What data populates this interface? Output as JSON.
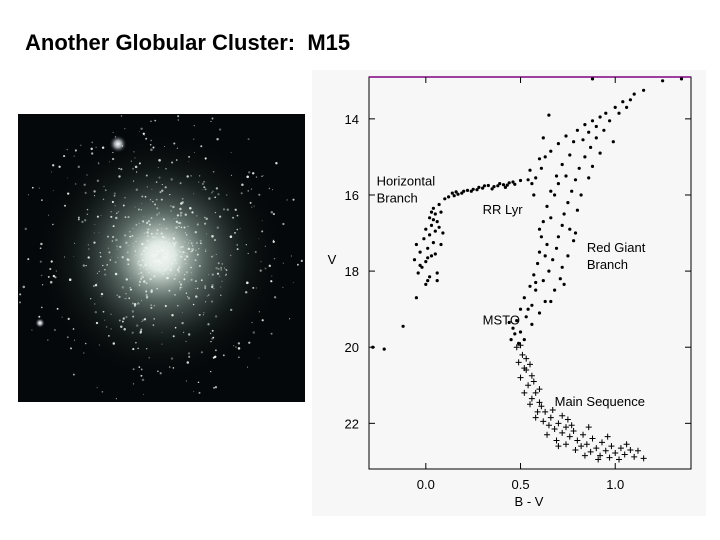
{
  "slide": {
    "title": "Another Globular Cluster:  M15"
  },
  "image": {
    "subject": "M15 globular cluster photograph",
    "colors": {
      "background": "#05080a",
      "stars": "#e6efe9",
      "halo": "#cfe0d8"
    }
  },
  "chart_data": {
    "type": "scatter",
    "title": "",
    "xlabel": "B - V",
    "ylabel": "V",
    "xlim": [
      -0.3,
      1.4
    ],
    "ylim": [
      23.2,
      12.9
    ],
    "y_inverted": true,
    "x_ticks": [
      0.0,
      0.5,
      1.0
    ],
    "x_tick_labels": [
      "0.0",
      "0.5",
      "1.0"
    ],
    "y_ticks": [
      14,
      16,
      18,
      20,
      22
    ],
    "y_tick_labels": [
      "14",
      "16",
      "18",
      "20",
      "22"
    ],
    "grid": false,
    "colors": {
      "points": "#000000",
      "frame": "#000000",
      "top_border": "#800080"
    },
    "annotations": [
      {
        "text": "Horizontal",
        "x": -0.26,
        "y": 15.75
      },
      {
        "text": "Branch",
        "x": -0.26,
        "y": 16.2
      },
      {
        "text": "RR Lyr",
        "x": 0.3,
        "y": 16.5
      },
      {
        "text": "Red Giant",
        "x": 0.85,
        "y": 17.5
      },
      {
        "text": "Branch",
        "x": 0.85,
        "y": 17.95
      },
      {
        "text": "MSTO",
        "x": 0.3,
        "y": 19.4
      },
      {
        "text": "Main Sequence",
        "x": 0.68,
        "y": 21.55
      }
    ],
    "series": [
      {
        "name": "",
        "marker": "dot",
        "points": [
          [
            -0.28,
            20.0
          ],
          [
            -0.22,
            20.05
          ],
          [
            -0.12,
            19.45
          ],
          [
            -0.05,
            18.7
          ],
          [
            0.01,
            18.25
          ],
          [
            -0.04,
            18.05
          ],
          [
            -0.02,
            17.9
          ],
          [
            0.0,
            17.75
          ],
          [
            0.03,
            17.6
          ],
          [
            -0.03,
            17.5
          ],
          [
            0.01,
            17.4
          ],
          [
            0.04,
            17.25
          ],
          [
            -0.01,
            17.15
          ],
          [
            0.02,
            17.05
          ],
          [
            0.05,
            16.95
          ],
          [
            0.0,
            16.9
          ],
          [
            0.03,
            16.8
          ],
          [
            0.06,
            16.7
          ],
          [
            0.02,
            16.6
          ],
          [
            0.05,
            16.5
          ],
          [
            0.08,
            16.45
          ],
          [
            0.04,
            16.35
          ],
          [
            0.07,
            16.25
          ],
          [
            0.1,
            16.1
          ],
          [
            0.06,
            18.05
          ],
          [
            0.02,
            18.15
          ],
          [
            -0.06,
            17.7
          ],
          [
            0.08,
            17.3
          ],
          [
            0.07,
            16.85
          ],
          [
            0.01,
            17.65
          ],
          [
            -0.03,
            17.85
          ],
          [
            0.05,
            17.55
          ],
          [
            0.09,
            17.0
          ],
          [
            0.04,
            16.65
          ],
          [
            0.0,
            18.35
          ],
          [
            0.06,
            18.25
          ],
          [
            -0.05,
            17.3
          ],
          [
            0.03,
            16.45
          ],
          [
            0.12,
            16.05
          ],
          [
            0.14,
            15.95
          ],
          [
            0.17,
            15.98
          ],
          [
            0.2,
            15.9
          ],
          [
            0.22,
            15.88
          ],
          [
            0.25,
            15.85
          ],
          [
            0.28,
            15.8
          ],
          [
            0.3,
            15.82
          ],
          [
            0.33,
            15.75
          ],
          [
            0.36,
            15.78
          ],
          [
            0.39,
            15.7
          ],
          [
            0.41,
            15.73
          ],
          [
            0.44,
            15.68
          ],
          [
            0.47,
            15.72
          ],
          [
            0.16,
            15.92
          ],
          [
            0.24,
            15.9
          ],
          [
            0.31,
            15.76
          ],
          [
            0.35,
            15.84
          ],
          [
            0.38,
            15.76
          ],
          [
            0.43,
            15.74
          ],
          [
            0.27,
            15.86
          ],
          [
            0.19,
            15.95
          ],
          [
            0.46,
            15.66
          ],
          [
            0.15,
            16.02
          ],
          [
            0.42,
            15.8
          ],
          [
            0.5,
            15.62
          ],
          [
            0.54,
            15.6
          ],
          [
            0.56,
            15.7
          ],
          [
            0.58,
            15.55
          ],
          [
            0.61,
            15.3
          ],
          [
            0.55,
            15.35
          ],
          [
            0.63,
            15.0
          ],
          [
            0.6,
            15.05
          ],
          [
            0.66,
            14.85
          ],
          [
            0.7,
            14.65
          ],
          [
            0.74,
            14.45
          ],
          [
            0.8,
            14.3
          ],
          [
            0.84,
            14.15
          ],
          [
            0.88,
            14.05
          ],
          [
            0.92,
            13.95
          ],
          [
            0.95,
            13.85
          ],
          [
            1.0,
            13.7
          ],
          [
            1.04,
            13.55
          ],
          [
            1.1,
            13.35
          ],
          [
            1.15,
            13.25
          ],
          [
            1.25,
            13.0
          ],
          [
            1.35,
            12.95
          ],
          [
            0.88,
            12.95
          ],
          [
            0.65,
            13.9
          ],
          [
            0.62,
            14.5
          ],
          [
            0.78,
            14.6
          ],
          [
            0.86,
            14.35
          ],
          [
            0.9,
            14.2
          ],
          [
            0.97,
            14.05
          ],
          [
            1.02,
            13.85
          ],
          [
            1.06,
            13.7
          ],
          [
            1.08,
            13.5
          ],
          [
            0.83,
            14.55
          ],
          [
            0.76,
            14.95
          ],
          [
            0.72,
            15.2
          ],
          [
            0.69,
            15.5
          ],
          [
            0.66,
            15.9
          ],
          [
            0.64,
            16.3
          ],
          [
            0.62,
            16.7
          ],
          [
            0.61,
            17.1
          ],
          [
            0.6,
            17.5
          ],
          [
            0.59,
            17.8
          ],
          [
            0.57,
            18.1
          ],
          [
            0.55,
            18.4
          ],
          [
            0.52,
            18.7
          ],
          [
            0.5,
            19.0
          ],
          [
            0.48,
            19.3
          ],
          [
            0.46,
            19.5
          ],
          [
            0.44,
            19.35
          ],
          [
            0.47,
            19.65
          ],
          [
            0.5,
            19.6
          ],
          [
            0.53,
            19.2
          ],
          [
            0.56,
            18.9
          ],
          [
            0.58,
            18.5
          ],
          [
            0.62,
            18.25
          ],
          [
            0.65,
            18.0
          ],
          [
            0.67,
            17.7
          ],
          [
            0.69,
            17.4
          ],
          [
            0.7,
            17.1
          ],
          [
            0.72,
            16.8
          ],
          [
            0.73,
            16.5
          ],
          [
            0.75,
            16.2
          ],
          [
            0.77,
            15.9
          ],
          [
            0.79,
            15.6
          ],
          [
            0.81,
            15.3
          ],
          [
            0.84,
            15.0
          ],
          [
            0.87,
            14.75
          ],
          [
            0.9,
            14.5
          ],
          [
            0.94,
            14.3
          ],
          [
            0.68,
            16.0
          ],
          [
            0.7,
            15.7
          ],
          [
            0.74,
            15.5
          ],
          [
            0.66,
            16.6
          ],
          [
            0.64,
            17.3
          ],
          [
            0.72,
            17.9
          ],
          [
            0.75,
            17.6
          ],
          [
            0.78,
            17.2
          ],
          [
            0.76,
            16.9
          ],
          [
            0.8,
            16.4
          ],
          [
            0.82,
            16.0
          ],
          [
            0.71,
            18.2
          ],
          [
            0.68,
            18.5
          ],
          [
            0.63,
            18.8
          ],
          [
            0.6,
            19.1
          ],
          [
            0.56,
            19.4
          ],
          [
            0.52,
            19.8
          ],
          [
            0.49,
            19.9
          ],
          [
            0.45,
            19.8
          ],
          [
            0.54,
            19.0
          ],
          [
            0.66,
            18.8
          ],
          [
            0.73,
            18.35
          ],
          [
            0.79,
            17.0
          ],
          [
            0.86,
            15.55
          ],
          [
            0.88,
            15.25
          ],
          [
            0.92,
            14.9
          ],
          [
            0.99,
            14.6
          ],
          [
            0.57,
            16.0
          ],
          [
            0.6,
            16.9
          ],
          [
            0.63,
            17.6
          ],
          [
            0.58,
            18.3
          ]
        ]
      },
      {
        "name": "",
        "marker": "plus",
        "points": [
          [
            0.48,
            20.0
          ],
          [
            0.51,
            20.2
          ],
          [
            0.49,
            20.4
          ],
          [
            0.53,
            20.6
          ],
          [
            0.5,
            20.8
          ],
          [
            0.54,
            21.0
          ],
          [
            0.52,
            21.2
          ],
          [
            0.56,
            21.35
          ],
          [
            0.55,
            21.5
          ],
          [
            0.59,
            21.7
          ],
          [
            0.58,
            21.85
          ],
          [
            0.62,
            21.95
          ],
          [
            0.65,
            22.05
          ],
          [
            0.68,
            22.15
          ],
          [
            0.72,
            22.25
          ],
          [
            0.76,
            22.35
          ],
          [
            0.8,
            22.45
          ],
          [
            0.85,
            22.55
          ],
          [
            0.9,
            22.65
          ],
          [
            0.95,
            22.72
          ],
          [
            1.0,
            22.78
          ],
          [
            1.05,
            22.82
          ],
          [
            1.1,
            22.88
          ],
          [
            1.15,
            22.92
          ],
          [
            0.53,
            20.3
          ],
          [
            0.57,
            20.9
          ],
          [
            0.6,
            21.45
          ],
          [
            0.63,
            21.7
          ],
          [
            0.66,
            21.85
          ],
          [
            0.7,
            22.0
          ],
          [
            0.74,
            22.1
          ],
          [
            0.78,
            22.2
          ],
          [
            0.83,
            22.3
          ],
          [
            0.88,
            22.4
          ],
          [
            0.93,
            22.5
          ],
          [
            0.98,
            22.6
          ],
          [
            1.03,
            22.65
          ],
          [
            1.08,
            22.7
          ],
          [
            0.52,
            20.55
          ],
          [
            0.56,
            20.75
          ],
          [
            0.6,
            21.1
          ],
          [
            0.67,
            21.65
          ],
          [
            0.72,
            21.8
          ],
          [
            0.77,
            22.05
          ],
          [
            0.82,
            22.6
          ],
          [
            0.87,
            22.75
          ],
          [
            0.92,
            22.85
          ],
          [
            0.97,
            22.9
          ],
          [
            1.02,
            22.95
          ],
          [
            0.64,
            22.3
          ],
          [
            0.69,
            22.45
          ],
          [
            0.74,
            22.55
          ],
          [
            0.79,
            22.7
          ],
          [
            0.84,
            22.85
          ],
          [
            0.5,
            19.95
          ],
          [
            0.55,
            20.45
          ],
          [
            0.58,
            21.2
          ],
          [
            0.61,
            21.55
          ],
          [
            0.75,
            21.9
          ],
          [
            0.86,
            22.1
          ],
          [
            0.96,
            22.35
          ],
          [
            1.06,
            22.55
          ],
          [
            1.12,
            22.72
          ],
          [
            0.91,
            22.95
          ],
          [
            0.7,
            22.6
          ]
        ]
      }
    ]
  }
}
